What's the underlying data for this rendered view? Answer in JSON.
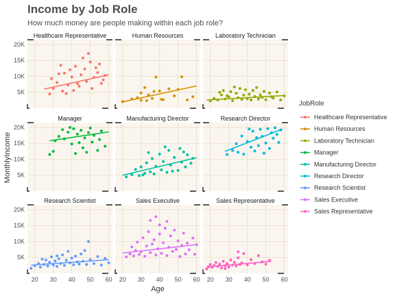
{
  "chart_data": {
    "type": "scatter",
    "title": "Income by Job Role",
    "subtitle": "How much money are people making within each job role?",
    "xlabel": "Age",
    "ylabel": "MonthlyIncome",
    "xlim": [
      16,
      62
    ],
    "ylim": [
      0,
      21500
    ],
    "x_ticks": [
      20,
      30,
      40,
      50,
      60
    ],
    "x_tick_labels": [
      "20",
      "30",
      "40",
      "50",
      "60"
    ],
    "y_ticks": [
      5000,
      10000,
      15000,
      20000
    ],
    "y_tick_labels": [
      "5K",
      "10K",
      "15K",
      "20K"
    ],
    "grid": true,
    "legend": {
      "title": "JobRole",
      "position": "right"
    },
    "facets": [
      {
        "name": "Healthcare Representative",
        "color": "#F8766D",
        "points": [
          [
            28,
            4500
          ],
          [
            30,
            6200
          ],
          [
            32,
            8100
          ],
          [
            35,
            5400
          ],
          [
            36,
            11000
          ],
          [
            38,
            7300
          ],
          [
            40,
            9800
          ],
          [
            42,
            13200
          ],
          [
            44,
            6900
          ],
          [
            45,
            10500
          ],
          [
            47,
            12300
          ],
          [
            48,
            8400
          ],
          [
            50,
            14500
          ],
          [
            52,
            9700
          ],
          [
            54,
            11200
          ],
          [
            56,
            7800
          ],
          [
            58,
            10300
          ],
          [
            34,
            13500
          ],
          [
            41,
            5600
          ],
          [
            46,
            15800
          ],
          [
            39,
            12100
          ],
          [
            51,
            6200
          ],
          [
            55,
            13900
          ],
          [
            29,
            9300
          ],
          [
            33,
            10800
          ],
          [
            43,
            7700
          ],
          [
            49,
            17200
          ],
          [
            37,
            4600
          ],
          [
            53,
            12700
          ],
          [
            57,
            8900
          ]
        ],
        "trend": [
          [
            25,
            6000
          ],
          [
            60,
            10500
          ]
        ]
      },
      {
        "name": "Human Resources",
        "color": "#D39200",
        "points": [
          [
            20,
            2100
          ],
          [
            25,
            2900
          ],
          [
            28,
            3300
          ],
          [
            30,
            2500
          ],
          [
            32,
            6500
          ],
          [
            34,
            4200
          ],
          [
            36,
            3100
          ],
          [
            38,
            9800
          ],
          [
            40,
            5400
          ],
          [
            42,
            2700
          ],
          [
            45,
            6100
          ],
          [
            48,
            3900
          ],
          [
            52,
            9900
          ],
          [
            55,
            2600
          ],
          [
            33,
            2400
          ],
          [
            37,
            5300
          ],
          [
            41,
            2800
          ],
          [
            50,
            5900
          ],
          [
            58,
            3600
          ],
          [
            30,
            4800
          ]
        ],
        "trend": [
          [
            20,
            2000
          ],
          [
            60,
            7000
          ]
        ]
      },
      {
        "name": "Laboratory Technician",
        "color": "#93AA00",
        "points": [
          [
            20,
            2300
          ],
          [
            22,
            3100
          ],
          [
            24,
            2600
          ],
          [
            26,
            4200
          ],
          [
            28,
            2900
          ],
          [
            30,
            3600
          ],
          [
            31,
            5200
          ],
          [
            32,
            2400
          ],
          [
            34,
            4700
          ],
          [
            35,
            3300
          ],
          [
            36,
            6200
          ],
          [
            37,
            2800
          ],
          [
            38,
            4100
          ],
          [
            39,
            5800
          ],
          [
            40,
            3000
          ],
          [
            41,
            4400
          ],
          [
            42,
            2600
          ],
          [
            43,
            5600
          ],
          [
            44,
            3700
          ],
          [
            45,
            6500
          ],
          [
            46,
            2900
          ],
          [
            47,
            4200
          ],
          [
            48,
            3400
          ],
          [
            49,
            5300
          ],
          [
            50,
            2700
          ],
          [
            52,
            4800
          ],
          [
            54,
            3200
          ],
          [
            56,
            5100
          ],
          [
            58,
            2600
          ],
          [
            60,
            3900
          ],
          [
            27,
            5600
          ],
          [
            33,
            6700
          ],
          [
            29,
            3900
          ],
          [
            25,
            5000
          ],
          [
            53,
            3600
          ]
        ],
        "trend": [
          [
            18,
            2600
          ],
          [
            60,
            4000
          ]
        ]
      },
      {
        "name": "Manager",
        "color": "#00BA38",
        "points": [
          [
            28,
            11500
          ],
          [
            30,
            12500
          ],
          [
            31,
            15800
          ],
          [
            33,
            17200
          ],
          [
            35,
            19300
          ],
          [
            36,
            16400
          ],
          [
            38,
            18500
          ],
          [
            40,
            14800
          ],
          [
            41,
            19600
          ],
          [
            43,
            17900
          ],
          [
            44,
            15200
          ],
          [
            45,
            19100
          ],
          [
            47,
            16700
          ],
          [
            49,
            18400
          ],
          [
            50,
            19800
          ],
          [
            52,
            17500
          ],
          [
            54,
            12800
          ],
          [
            55,
            16200
          ],
          [
            56,
            18900
          ],
          [
            58,
            14100
          ],
          [
            42,
            11800
          ],
          [
            46,
            13600
          ],
          [
            39,
            20000
          ],
          [
            51,
            15400
          ],
          [
            48,
            12200
          ]
        ],
        "trend": [
          [
            28,
            15800
          ],
          [
            60,
            18600
          ]
        ]
      },
      {
        "name": "Manufacturing Director",
        "color": "#00C19F",
        "points": [
          [
            22,
            4500
          ],
          [
            25,
            5200
          ],
          [
            27,
            6800
          ],
          [
            29,
            4900
          ],
          [
            30,
            7600
          ],
          [
            32,
            5600
          ],
          [
            33,
            8900
          ],
          [
            35,
            6100
          ],
          [
            36,
            10200
          ],
          [
            37,
            5400
          ],
          [
            38,
            7800
          ],
          [
            40,
            11600
          ],
          [
            41,
            6700
          ],
          [
            42,
            9300
          ],
          [
            44,
            5900
          ],
          [
            45,
            12800
          ],
          [
            46,
            8200
          ],
          [
            48,
            10600
          ],
          [
            50,
            6500
          ],
          [
            51,
            13400
          ],
          [
            52,
            9100
          ],
          [
            54,
            7600
          ],
          [
            55,
            11400
          ],
          [
            57,
            8800
          ],
          [
            58,
            10300
          ],
          [
            34,
            12100
          ],
          [
            43,
            13900
          ],
          [
            31,
            5100
          ],
          [
            47,
            6300
          ],
          [
            53,
            12300
          ]
        ],
        "trend": [
          [
            20,
            5000
          ],
          [
            60,
            10500
          ]
        ]
      },
      {
        "name": "Research Director",
        "color": "#00B9E3",
        "points": [
          [
            29,
            11500
          ],
          [
            32,
            12800
          ],
          [
            34,
            14900
          ],
          [
            35,
            12200
          ],
          [
            37,
            17300
          ],
          [
            38,
            11600
          ],
          [
            40,
            15600
          ],
          [
            42,
            13800
          ],
          [
            43,
            18800
          ],
          [
            44,
            12600
          ],
          [
            45,
            16800
          ],
          [
            46,
            14300
          ],
          [
            47,
            19400
          ],
          [
            48,
            17200
          ],
          [
            50,
            15100
          ],
          [
            51,
            19600
          ],
          [
            52,
            13400
          ],
          [
            53,
            18300
          ],
          [
            54,
            16600
          ],
          [
            55,
            19900
          ],
          [
            56,
            17800
          ],
          [
            57,
            15300
          ],
          [
            58,
            19200
          ],
          [
            41,
            19500
          ],
          [
            49,
            11900
          ]
        ],
        "trend": [
          [
            28,
            12500
          ],
          [
            59,
            19500
          ]
        ]
      },
      {
        "name": "Research Scientist",
        "color": "#619CFF",
        "points": [
          [
            18,
            1600
          ],
          [
            20,
            2400
          ],
          [
            22,
            3100
          ],
          [
            23,
            2000
          ],
          [
            25,
            2800
          ],
          [
            26,
            4200
          ],
          [
            27,
            2300
          ],
          [
            28,
            3500
          ],
          [
            29,
            5200
          ],
          [
            30,
            2600
          ],
          [
            31,
            3900
          ],
          [
            32,
            2200
          ],
          [
            33,
            4600
          ],
          [
            34,
            3100
          ],
          [
            35,
            5800
          ],
          [
            36,
            2500
          ],
          [
            37,
            4100
          ],
          [
            38,
            6900
          ],
          [
            39,
            3300
          ],
          [
            40,
            4800
          ],
          [
            41,
            2700
          ],
          [
            42,
            5400
          ],
          [
            43,
            3600
          ],
          [
            44,
            2900
          ],
          [
            45,
            6100
          ],
          [
            46,
            3800
          ],
          [
            48,
            2800
          ],
          [
            49,
            10000
          ],
          [
            50,
            4300
          ],
          [
            52,
            3100
          ],
          [
            54,
            5300
          ],
          [
            56,
            2600
          ],
          [
            58,
            4700
          ],
          [
            60,
            3300
          ],
          [
            24,
            4500
          ],
          [
            47,
            7200
          ],
          [
            32,
            5500
          ]
        ],
        "trend": [
          [
            18,
            2600
          ],
          [
            60,
            4300
          ]
        ]
      },
      {
        "name": "Sales Executive",
        "color": "#DB72FB",
        "points": [
          [
            22,
            5200
          ],
          [
            24,
            6100
          ],
          [
            25,
            8300
          ],
          [
            26,
            5500
          ],
          [
            27,
            7200
          ],
          [
            28,
            9800
          ],
          [
            29,
            5900
          ],
          [
            30,
            6800
          ],
          [
            31,
            11200
          ],
          [
            32,
            5400
          ],
          [
            33,
            8600
          ],
          [
            34,
            13100
          ],
          [
            35,
            6500
          ],
          [
            36,
            9200
          ],
          [
            37,
            10600
          ],
          [
            38,
            5800
          ],
          [
            39,
            7700
          ],
          [
            40,
            12400
          ],
          [
            41,
            6300
          ],
          [
            42,
            9600
          ],
          [
            43,
            14200
          ],
          [
            44,
            5600
          ],
          [
            45,
            8200
          ],
          [
            46,
            11800
          ],
          [
            47,
            6900
          ],
          [
            48,
            13600
          ],
          [
            49,
            7500
          ],
          [
            50,
            10200
          ],
          [
            51,
            5300
          ],
          [
            52,
            8800
          ],
          [
            53,
            12600
          ],
          [
            54,
            6100
          ],
          [
            55,
            9500
          ],
          [
            56,
            7400
          ],
          [
            58,
            11100
          ],
          [
            59,
            6000
          ],
          [
            60,
            9000
          ],
          [
            35,
            16600
          ],
          [
            44,
            16300
          ],
          [
            38,
            17800
          ],
          [
            40,
            15200
          ]
        ],
        "trend": [
          [
            20,
            6400
          ],
          [
            60,
            9000
          ]
        ]
      },
      {
        "name": "Sales Representative",
        "color": "#FF61C3",
        "points": [
          [
            18,
            1400
          ],
          [
            19,
            2100
          ],
          [
            20,
            2800
          ],
          [
            21,
            1900
          ],
          [
            22,
            2500
          ],
          [
            23,
            3400
          ],
          [
            24,
            2200
          ],
          [
            25,
            2900
          ],
          [
            26,
            1700
          ],
          [
            27,
            3800
          ],
          [
            28,
            2400
          ],
          [
            29,
            3100
          ],
          [
            30,
            2000
          ],
          [
            31,
            4200
          ],
          [
            32,
            2600
          ],
          [
            33,
            3500
          ],
          [
            34,
            2300
          ],
          [
            35,
            4900
          ],
          [
            36,
            2800
          ],
          [
            37,
            3300
          ],
          [
            38,
            6200
          ],
          [
            40,
            2700
          ],
          [
            42,
            4300
          ],
          [
            44,
            3100
          ],
          [
            46,
            5600
          ],
          [
            48,
            3600
          ],
          [
            50,
            2900
          ],
          [
            52,
            4100
          ],
          [
            28,
            1500
          ],
          [
            35,
            6800
          ]
        ],
        "trend": [
          [
            18,
            2000
          ],
          [
            53,
            3800
          ]
        ]
      }
    ]
  }
}
